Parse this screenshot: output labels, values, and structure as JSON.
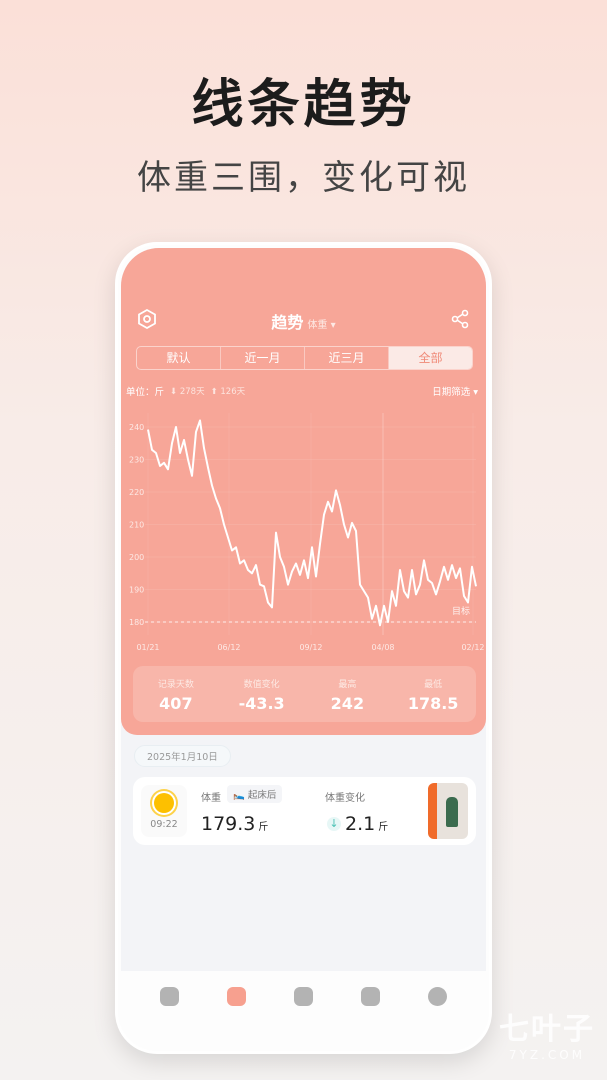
{
  "promo": {
    "headline": "线条趋势",
    "subtitle": "体重三围，变化可视"
  },
  "header": {
    "title": "趋势",
    "metric": "体重 ▾",
    "icons": [
      "settings-icon",
      "share-icon"
    ]
  },
  "ranges": [
    {
      "label": "默认"
    },
    {
      "label": "近一月"
    },
    {
      "label": "近三月"
    },
    {
      "label": "全部",
      "selected": true
    }
  ],
  "unit_row": {
    "unit": "单位：斤",
    "down_days": "⬇ 278天",
    "up_days": "⬆ 126天",
    "filter": "日期筛选 ▾"
  },
  "chart_data": {
    "type": "line",
    "x_tick_labels": [
      "01/21",
      "06/12",
      "09/12",
      "04/08",
      "02/12"
    ],
    "y_ticks": [
      180,
      190,
      200,
      210,
      220,
      230,
      240
    ],
    "ylim": [
      175,
      245
    ],
    "grid": true,
    "target": {
      "value": 180,
      "label": "目标"
    },
    "values": [
      239.2,
      233,
      232,
      228,
      229,
      227,
      235,
      240,
      232,
      236,
      230,
      225,
      238.5,
      242,
      233.5,
      227.5,
      222,
      218,
      215,
      210,
      206,
      202,
      203,
      198,
      199,
      196,
      195,
      197.5,
      191.5,
      191,
      186,
      184.5,
      207.5,
      200,
      197,
      191.5,
      195.5,
      198,
      194.5,
      199,
      193.5,
      203,
      194,
      204,
      213,
      217,
      214,
      220.5,
      216,
      210,
      206,
      210.5,
      208,
      191.5,
      189.5,
      187.5,
      181,
      185,
      179,
      185,
      180,
      189.5,
      185,
      196,
      189.5,
      187.5,
      196,
      188.5,
      191.5,
      199,
      193,
      192,
      188.5,
      192.5,
      197,
      193,
      197.5,
      193.5,
      196.5,
      188,
      186,
      197,
      191
    ],
    "line_color": "#ffffff"
  },
  "stats": [
    {
      "label": "记录天数",
      "value": "407"
    },
    {
      "label": "数值变化",
      "value": "-43.3"
    },
    {
      "label": "最高",
      "value": "242"
    },
    {
      "label": "最低",
      "value": "178.5"
    }
  ],
  "record": {
    "date": "2025年1月10日",
    "time": "09:22",
    "weight_label": "体重",
    "tag": "🛌 起床后",
    "weight": "179.3",
    "unit": "斤",
    "change_label": "体重变化",
    "change": "2.1",
    "change_arrow": "↓"
  },
  "tabs": [
    "home-icon",
    "trend-icon",
    "calendar-icon",
    "notebook-icon",
    "profile-icon"
  ],
  "watermark": {
    "name": "七叶子",
    "site": "7YZ.COM"
  },
  "colors": {
    "accent": "#f7a698",
    "active_tab": "#f7a08f",
    "down": "#4cc2b5"
  }
}
